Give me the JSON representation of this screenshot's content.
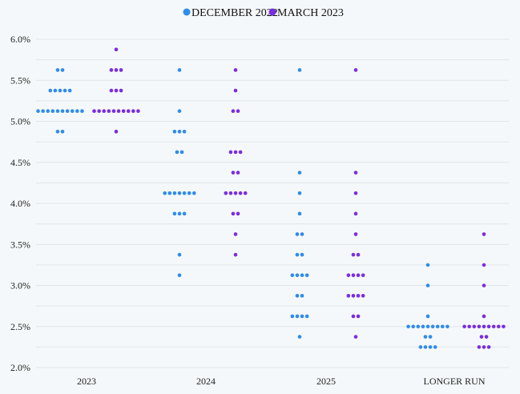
{
  "chart_data": {
    "type": "scatter",
    "title": "",
    "xlabel": "",
    "ylabel": "",
    "ylim": [
      2.0,
      6.0
    ],
    "y_ticks": [
      "2.0%",
      "2.5%",
      "3.0%",
      "3.5%",
      "4.0%",
      "4.5%",
      "5.0%",
      "5.5%",
      "6.0%"
    ],
    "categories": [
      "2023",
      "2024",
      "2025",
      "LONGER RUN"
    ],
    "grid": true,
    "legend_position": "top",
    "series": [
      {
        "name": "DECEMBER 2022",
        "color": "#2f8cea",
        "values": [
          {
            "5.625": 2,
            "5.375": 5,
            "5.125": 10,
            "4.875": 2
          },
          {
            "5.625": 1,
            "5.125": 1,
            "4.875": 3,
            "4.625": 2,
            "4.125": 7,
            "3.875": 3,
            "3.375": 1,
            "3.125": 1
          },
          {
            "5.625": 1,
            "4.375": 1,
            "4.125": 1,
            "3.875": 1,
            "3.625": 2,
            "3.375": 2,
            "3.125": 4,
            "2.875": 2,
            "2.625": 4,
            "2.375": 1
          },
          {
            "3.25": 1,
            "3.0": 1,
            "2.625": 1,
            "2.5": 9,
            "2.375": 2,
            "2.25": 4
          }
        ]
      },
      {
        "name": "MARCH 2023",
        "color": "#7a2de0",
        "values": [
          {
            "5.875": 1,
            "5.625": 3,
            "5.375": 3,
            "5.125": 10,
            "4.875": 1
          },
          {
            "5.625": 1,
            "5.375": 1,
            "5.125": 2,
            "4.625": 3,
            "4.375": 2,
            "4.125": 5,
            "3.875": 2,
            "3.625": 1,
            "3.375": 1
          },
          {
            "5.625": 1,
            "4.375": 1,
            "4.125": 1,
            "3.875": 1,
            "3.625": 1,
            "3.375": 2,
            "3.125": 4,
            "2.875": 4,
            "2.625": 2,
            "2.375": 1
          },
          {
            "3.625": 1,
            "3.25": 1,
            "3.0": 1,
            "2.625": 1,
            "2.5": 9,
            "2.375": 2,
            "2.25": 3
          }
        ]
      }
    ]
  }
}
